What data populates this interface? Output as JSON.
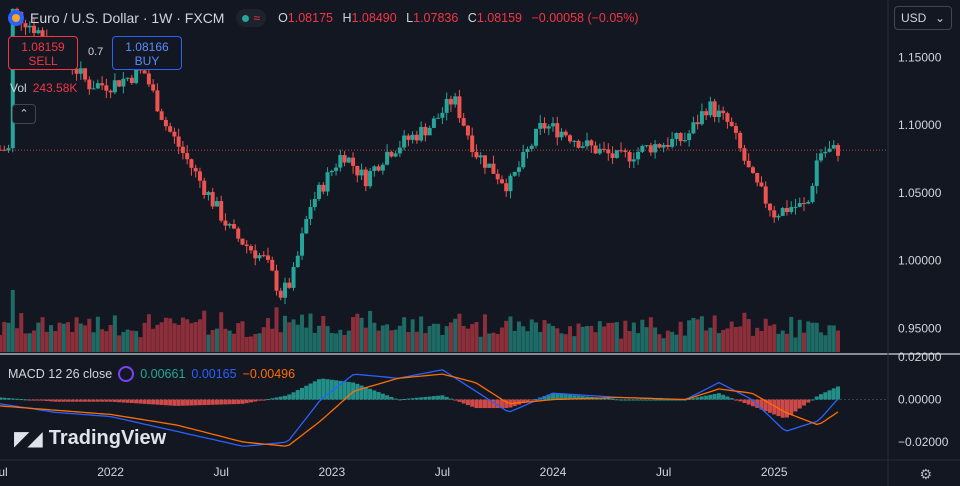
{
  "header": {
    "symbol": "Euro / U.S. Dollar · 1W · FXCM",
    "ohlc": [
      {
        "k": "O",
        "v": "1.08175"
      },
      {
        "k": "H",
        "v": "1.08490"
      },
      {
        "k": "L",
        "v": "1.07836"
      },
      {
        "k": "C",
        "v": "1.08159"
      }
    ],
    "change": "−0.00058 (−0.05%)"
  },
  "currency": {
    "label": "USD"
  },
  "trade": {
    "sell_price": "1.08159",
    "sell_label": "SELL",
    "buy_price": "1.08166",
    "buy_label": "BUY",
    "spread": "0.7"
  },
  "volume": {
    "label": "Vol",
    "value": "243.58K"
  },
  "macd": {
    "label": "MACD 12 26 close",
    "hist": "0.00661",
    "macd": "0.00165",
    "signal": "−0.00496"
  },
  "watermark": "TradingView",
  "colors": {
    "bg": "#131722",
    "up": "#26a69a",
    "down": "#ef5350",
    "macd": "#2962ff",
    "signal": "#ff6d00",
    "grid": "#2a2e39"
  },
  "chart_data": [
    {
      "type": "candlestick",
      "title": "Euro / U.S. Dollar · 1W · FXCM",
      "x_ticks": [
        "Jul",
        "2022",
        "Jul",
        "2023",
        "Jul",
        "2024",
        "Jul",
        "2025"
      ],
      "y_ticks": [
        "1.15000",
        "1.10000",
        "1.05000",
        "1.00000",
        "0.95000"
      ],
      "ylim": [
        0.9325,
        1.1925
      ],
      "last_price": 1.08159,
      "close_path": [
        [
          2021.55,
          1.185
        ],
        [
          2021.75,
          1.16
        ],
        [
          2021.9,
          1.13
        ],
        [
          2022.0,
          1.13
        ],
        [
          2022.15,
          1.14
        ],
        [
          2022.25,
          1.1
        ],
        [
          2022.4,
          1.06
        ],
        [
          2022.55,
          1.02
        ],
        [
          2022.7,
          1.0
        ],
        [
          2022.77,
          0.975
        ],
        [
          2022.82,
          0.985
        ],
        [
          2022.9,
          1.04
        ],
        [
          2023.05,
          1.08
        ],
        [
          2023.15,
          1.06
        ],
        [
          2023.25,
          1.08
        ],
        [
          2023.35,
          1.09
        ],
        [
          2023.45,
          1.1
        ],
        [
          2023.55,
          1.12
        ],
        [
          2023.65,
          1.08
        ],
        [
          2023.8,
          1.055
        ],
        [
          2023.95,
          1.1
        ],
        [
          2024.05,
          1.095
        ],
        [
          2024.15,
          1.085
        ],
        [
          2024.3,
          1.075
        ],
        [
          2024.45,
          1.085
        ],
        [
          2024.6,
          1.09
        ],
        [
          2024.7,
          1.115
        ],
        [
          2024.8,
          1.1
        ],
        [
          2024.9,
          1.06
        ],
        [
          2025.0,
          1.035
        ],
        [
          2025.08,
          1.04
        ],
        [
          2025.15,
          1.04
        ],
        [
          2025.2,
          1.08
        ],
        [
          2025.3,
          1.082
        ]
      ]
    },
    {
      "type": "bar",
      "name": "Vol",
      "x_range": [
        2021.5,
        2025.32
      ],
      "note_values": "relative volume heights, latest 243.58K"
    },
    {
      "type": "line",
      "title": "MACD 12 26 close",
      "y_ticks": [
        "0.02000",
        "0.00000",
        "−0.02000"
      ],
      "ylim": [
        -0.0275,
        0.0205
      ],
      "series": [
        {
          "name": "MACD",
          "values": [
            [
              2021.5,
              -0.002
            ],
            [
              2021.75,
              -0.006
            ],
            [
              2022.0,
              -0.008
            ],
            [
              2022.3,
              -0.015
            ],
            [
              2022.6,
              -0.022
            ],
            [
              2022.8,
              -0.02
            ],
            [
              2022.95,
              0.0
            ],
            [
              2023.1,
              0.012
            ],
            [
              2023.3,
              0.01
            ],
            [
              2023.5,
              0.014
            ],
            [
              2023.65,
              0.004
            ],
            [
              2023.8,
              -0.006
            ],
            [
              2024.0,
              0.003
            ],
            [
              2024.3,
              0.001
            ],
            [
              2024.6,
              0.0
            ],
            [
              2024.75,
              0.008
            ],
            [
              2024.9,
              0.0
            ],
            [
              2025.05,
              -0.015
            ],
            [
              2025.2,
              -0.01
            ],
            [
              2025.3,
              0.0017
            ]
          ]
        },
        {
          "name": "Signal",
          "values": [
            [
              2021.5,
              -0.003
            ],
            [
              2021.75,
              -0.005
            ],
            [
              2022.0,
              -0.007
            ],
            [
              2022.3,
              -0.012
            ],
            [
              2022.6,
              -0.02
            ],
            [
              2022.8,
              -0.022
            ],
            [
              2022.95,
              -0.01
            ],
            [
              2023.1,
              0.004
            ],
            [
              2023.3,
              0.01
            ],
            [
              2023.5,
              0.012
            ],
            [
              2023.65,
              0.008
            ],
            [
              2023.8,
              -0.002
            ],
            [
              2024.0,
              0.0
            ],
            [
              2024.3,
              0.001
            ],
            [
              2024.6,
              0.0
            ],
            [
              2024.75,
              0.005
            ],
            [
              2024.9,
              0.003
            ],
            [
              2025.05,
              -0.006
            ],
            [
              2025.2,
              -0.012
            ],
            [
              2025.3,
              -0.005
            ]
          ]
        }
      ]
    }
  ]
}
